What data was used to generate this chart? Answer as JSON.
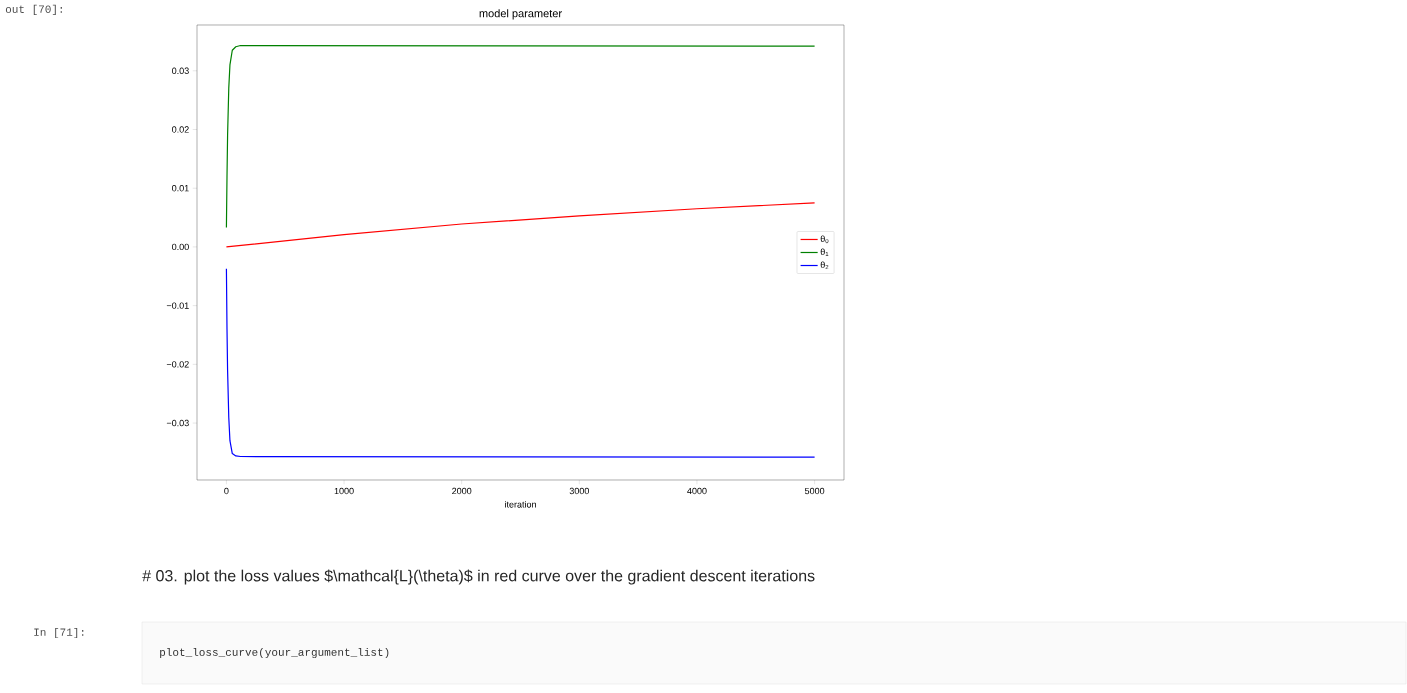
{
  "chart_data": {
    "type": "line",
    "title": "model parameter",
    "xlabel": "iteration",
    "xlim": [
      -250,
      5250
    ],
    "ylim": [
      -0.0397,
      0.0378
    ],
    "xticks": [
      0,
      1000,
      2000,
      3000,
      4000,
      5000
    ],
    "yticks": [
      {
        "value": -0.03,
        "label": "−0.03"
      },
      {
        "value": -0.02,
        "label": "−0.02"
      },
      {
        "value": -0.01,
        "label": "−0.01"
      },
      {
        "value": 0,
        "label": "0.00"
      },
      {
        "value": 0.01,
        "label": "0.01"
      },
      {
        "value": 0.02,
        "label": "0.02"
      },
      {
        "value": 0.03,
        "label": "0.03"
      }
    ],
    "legend": "right",
    "series": [
      {
        "name": "θ$_{0}$",
        "color": "#ff0000",
        "x": [
          0,
          1000,
          2000,
          3000,
          4000,
          5000
        ],
        "values": [
          0,
          0.0021,
          0.0039,
          0.0053,
          0.0065,
          0.0075
        ]
      },
      {
        "name": "θ$_{1}$",
        "color": "#008000",
        "x": [
          0,
          5,
          10,
          20,
          30,
          50,
          80,
          120,
          5000
        ],
        "values": [
          0.0033,
          0.012,
          0.019,
          0.027,
          0.031,
          0.0335,
          0.0341,
          0.0343,
          0.0342
        ]
      },
      {
        "name": "θ$_{2}$",
        "color": "#0000ff",
        "x": [
          0,
          5,
          10,
          20,
          30,
          50,
          80,
          120,
          5000
        ],
        "values": [
          -0.0037,
          -0.014,
          -0.021,
          -0.029,
          -0.033,
          -0.0352,
          -0.0356,
          -0.0357,
          -0.0358
        ]
      }
    ],
    "annotations": [
      "out [70]:",
      "# 03. plot the loss values $\\mathcal{L}(\\theta)$ in red curve over the gradient descent iterations",
      "In [71]:",
      "plot_loss_curve(your_argument_list)"
    ]
  }
}
